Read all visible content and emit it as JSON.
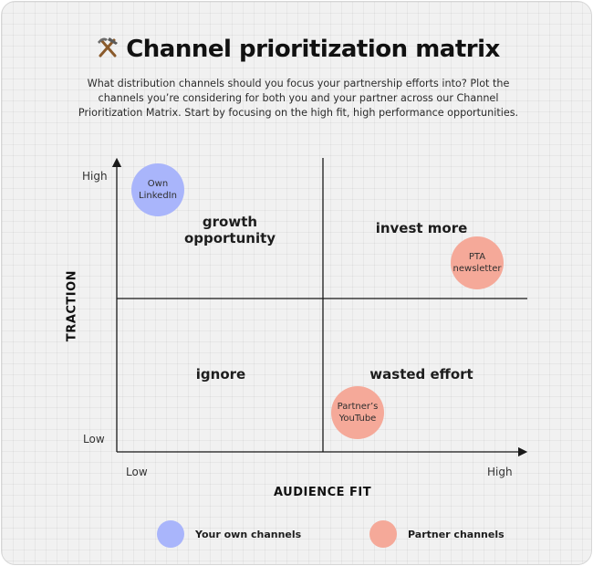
{
  "header": {
    "title": "Channel prioritization matrix",
    "subtitle": "What distribution channels should you focus your partnership efforts into? Plot the channels you’re considering for both you and your partner across our Channel Prioritization Matrix. Start by focusing on the high fit, high performance opportunities."
  },
  "icons": {
    "title_icon": "hammer-and-pick-icon"
  },
  "axes": {
    "y_title": "TRACTION",
    "x_title": "AUDIENCE FIT",
    "y_high": "High",
    "y_low": "Low",
    "x_low": "Low",
    "x_high": "High"
  },
  "quadrants": {
    "top_left": "growth opportunity",
    "top_right": "invest more",
    "bottom_left": "ignore",
    "bottom_right": "wasted effort"
  },
  "channels": [
    {
      "label": "Own LinkedIn",
      "type": "own"
    },
    {
      "label": "PTA newsletter",
      "type": "partner"
    },
    {
      "label": "Partner’s YouTube",
      "type": "partner"
    }
  ],
  "legend": {
    "own_label": "Your own channels",
    "partner_label": "Partner channels"
  },
  "colors": {
    "own": "#a9b5fb",
    "partner": "#f5a999",
    "axis": "#1a1a1a",
    "background": "#f1f1f1"
  }
}
